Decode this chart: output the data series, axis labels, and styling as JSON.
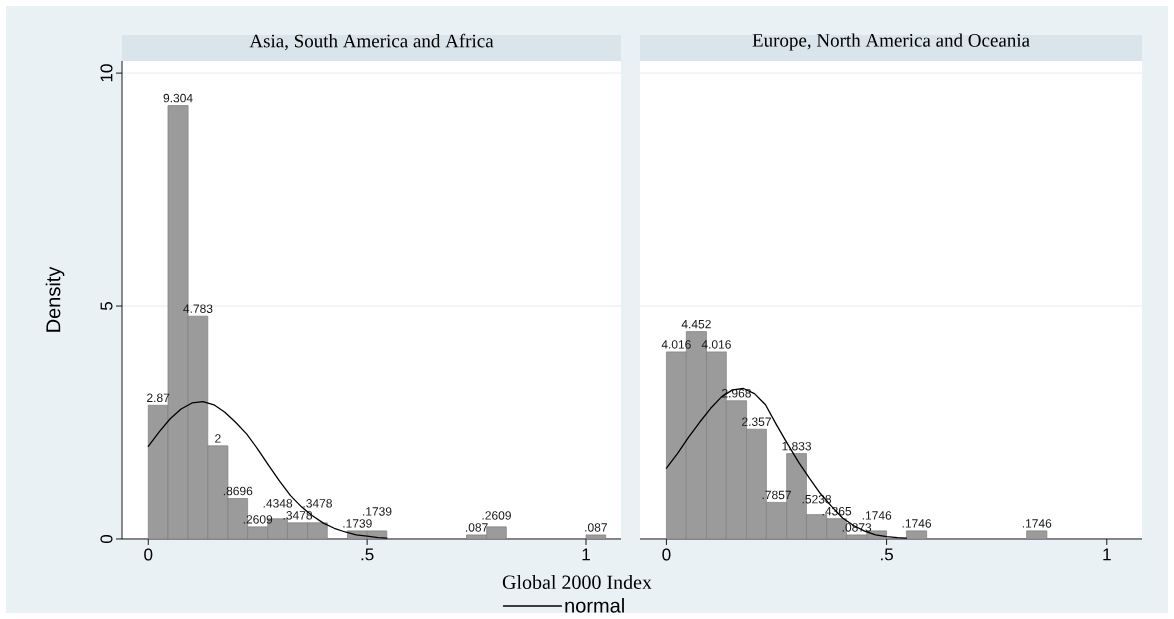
{
  "chart_data": [
    {
      "type": "histogram",
      "title": "Asia, South America and Africa",
      "xlabel": "Global 2000 Index",
      "ylabel": "Density",
      "xlim": [
        -0.06,
        1.08
      ],
      "ylim": [
        0,
        10.26
      ],
      "xticks": [
        0,
        {
          "value": 0.5,
          "label": ".5"
        },
        1
      ],
      "yticks": [
        0,
        5,
        10
      ],
      "grid": "y",
      "legend": "bottom",
      "series": [
        {
          "type": "histogram",
          "color": "#9b9b9b",
          "bins": [
            0,
            0.045,
            0.091,
            0.136,
            0.182,
            0.227,
            0.273,
            0.318,
            0.364,
            0.409,
            0.455,
            0.5,
            0.545,
            0.591,
            0.636,
            0.682,
            0.727,
            0.773,
            0.818,
            0.864,
            0.909,
            0.955,
            1,
            1.045
          ],
          "values": [
            2.87,
            9.304,
            4.783,
            2,
            0.8696,
            0.2609,
            0.4348,
            0.3478,
            0.3478,
            0,
            0.1739,
            0.1739,
            0,
            0,
            0,
            0,
            0.087,
            0.2609,
            0,
            0,
            0,
            0,
            0.087
          ],
          "value_labels": [
            "2.87",
            "9.304",
            "4.783",
            "2",
            ".8696",
            ".2609",
            ".4348",
            ".3478",
            ".3478",
            null,
            ".1739",
            ".1739",
            null,
            null,
            null,
            null,
            ".087",
            ".2609",
            null,
            null,
            null,
            null,
            ".087"
          ]
        },
        {
          "type": "line",
          "name": "normal",
          "color": "#000000",
          "x": [
            0,
            0.025,
            0.05,
            0.075,
            0.1,
            0.125,
            0.15,
            0.175,
            0.2,
            0.225,
            0.25,
            0.275,
            0.3,
            0.325,
            0.35,
            0.375,
            0.4,
            0.425,
            0.45,
            0.475,
            0.5,
            0.525,
            0.545
          ],
          "values": [
            1.99,
            2.3,
            2.58,
            2.79,
            2.92,
            2.95,
            2.88,
            2.72,
            2.5,
            2.25,
            1.93,
            1.58,
            1.24,
            0.93,
            0.69,
            0.5,
            0.34,
            0.23,
            0.15,
            0.09,
            0.06,
            0.03,
            0.02
          ]
        }
      ]
    },
    {
      "type": "histogram",
      "title": "Europe, North America and Oceania",
      "xlim": [
        -0.06,
        1.08
      ],
      "ylim": [
        0,
        10.26
      ],
      "xticks": [
        0,
        {
          "value": 0.5,
          "label": ".5"
        },
        1
      ],
      "yticks": [
        0,
        5,
        10
      ],
      "grid": "y",
      "tick_labels": "x",
      "series": [
        {
          "type": "histogram",
          "color": "#9b9b9b",
          "bins": [
            0,
            0.045,
            0.091,
            0.136,
            0.182,
            0.227,
            0.273,
            0.318,
            0.364,
            0.409,
            0.455,
            0.5,
            0.545,
            0.591,
            0.636,
            0.682,
            0.727,
            0.773,
            0.818,
            0.864,
            0.909,
            0.955,
            1,
            1.045
          ],
          "values": [
            4.016,
            4.452,
            4.016,
            2.968,
            2.357,
            0.7857,
            1.833,
            0.5238,
            0.4365,
            0.0873,
            0.1746,
            0,
            0.1746,
            0,
            0,
            0,
            0,
            0,
            0.1746,
            0,
            0,
            0,
            0
          ],
          "value_labels": [
            "4.016",
            "4.452",
            "4.016",
            "2.968",
            "2.357",
            ".7857",
            "1.833",
            ".5238",
            ".4365",
            ".0873",
            ".1746",
            null,
            ".1746",
            null,
            null,
            null,
            null,
            null,
            ".1746",
            null,
            null,
            null,
            null
          ]
        },
        {
          "type": "line",
          "color": "#000000",
          "x": [
            0,
            0.025,
            0.05,
            0.075,
            0.1,
            0.125,
            0.15,
            0.175,
            0.2,
            0.225,
            0.25,
            0.275,
            0.3,
            0.325,
            0.35,
            0.375,
            0.4,
            0.425,
            0.45,
            0.475,
            0.5,
            0.525,
            0.545
          ],
          "values": [
            1.52,
            1.83,
            2.18,
            2.5,
            2.8,
            3.05,
            3.2,
            3.23,
            3.12,
            2.88,
            2.45,
            2.04,
            1.65,
            1.3,
            0.97,
            0.7,
            0.45,
            0.29,
            0.17,
            0.09,
            0.05,
            0.03,
            0.02
          ]
        }
      ]
    }
  ]
}
